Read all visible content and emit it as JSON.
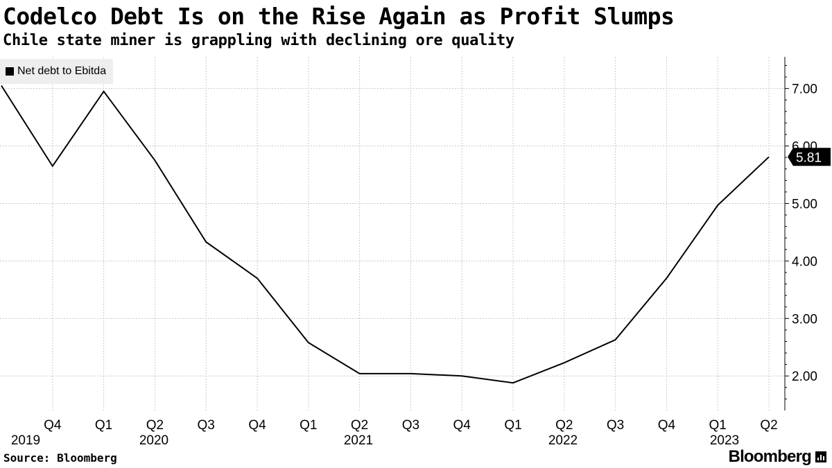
{
  "header": {
    "title": "Codelco Debt Is on the Rise Again as Profit Slumps",
    "subtitle": "Chile state miner is grappling with declining ore quality"
  },
  "legend": {
    "label": "Net debt to Ebitda"
  },
  "footer": {
    "source": "Source: Bloomberg",
    "brand": "Bloomberg"
  },
  "colors": {
    "line": "#000000",
    "grid": "#c8c8c8",
    "badge_bg": "#000000",
    "badge_text": "#ffffff"
  },
  "chart_data": {
    "type": "line",
    "title": "Codelco Debt Is on the Rise Again as Profit Slumps",
    "subtitle": "Chile state miner is grappling with declining ore quality",
    "series": [
      {
        "name": "Net debt to Ebitda",
        "values": [
          7.05,
          5.65,
          6.95,
          5.75,
          4.33,
          3.7,
          2.58,
          2.04,
          2.04,
          2.0,
          1.88,
          2.23,
          2.63,
          3.7,
          4.97,
          5.81
        ]
      }
    ],
    "x": [
      "Q3 2019",
      "Q4 2019",
      "Q1 2020",
      "Q2 2020",
      "Q3 2020",
      "Q4 2020",
      "Q1 2021",
      "Q2 2021",
      "Q3 2021",
      "Q4 2021",
      "Q1 2022",
      "Q2 2022",
      "Q3 2022",
      "Q4 2022",
      "Q1 2023",
      "Q2 2023"
    ],
    "quarter_labels": [
      "Q4",
      "Q1",
      "Q2",
      "Q3",
      "Q4",
      "Q1",
      "Q2",
      "Q3",
      "Q4",
      "Q1",
      "Q2",
      "Q3",
      "Q4",
      "Q1",
      "Q2"
    ],
    "year_labels": [
      "2019",
      "2020",
      "2021",
      "2022",
      "2023"
    ],
    "y_ticks": [
      2,
      3,
      4,
      5,
      6,
      7
    ],
    "y_tick_labels": [
      "2.00",
      "3.00",
      "4.00",
      "5.00",
      "6.00",
      "7.00"
    ],
    "ylim": [
      1.4,
      7.55
    ],
    "xlabel": "",
    "ylabel": "",
    "last_value_label": "5.81",
    "grid": true,
    "y_axis_side": "right",
    "legend_position": "top-left"
  }
}
